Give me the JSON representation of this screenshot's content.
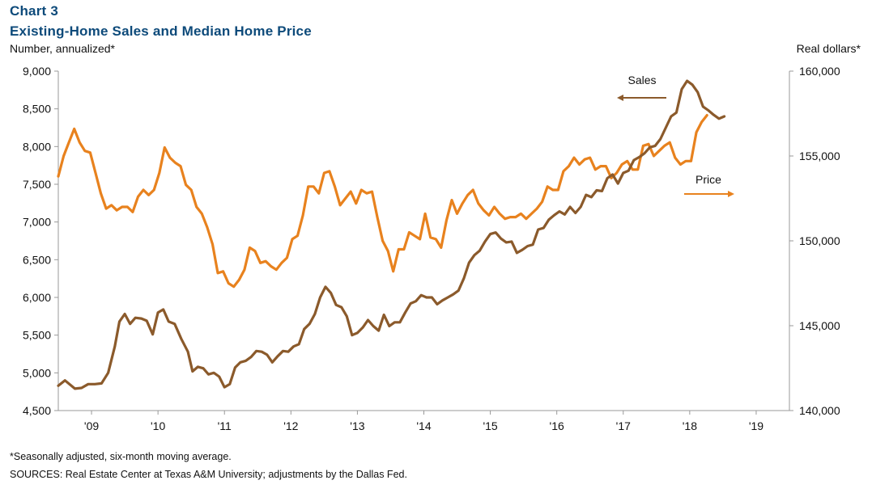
{
  "header": {
    "chart_label": "Chart 3",
    "title": "Existing-Home Sales and Median Home Price",
    "y_left_title": "Number, annualized*",
    "y_right_title": "Real dollars*"
  },
  "footer": {
    "footnote": "*Seasonally adjusted, six-month moving average.",
    "sources": "SOURCES: Real Estate Center at Texas A&M University; adjustments by the Dallas Fed."
  },
  "colors": {
    "sales": "#8B5A2B",
    "price": "#E8821E",
    "axis": "#999999"
  },
  "chart_data": {
    "type": "line",
    "title": "Existing-Home Sales and Median Home Price",
    "x_tick_labels": [
      "'09",
      "'10",
      "'11",
      "'12",
      "'13",
      "'14",
      "'15",
      "'16",
      "'17",
      "'18",
      "'19"
    ],
    "x_range": [
      2008.5,
      2019.5
    ],
    "y_left": {
      "label": "Number, annualized*",
      "range": [
        4500,
        9000
      ],
      "ticks": [
        "4,500",
        "5,000",
        "5,500",
        "6,000",
        "6,500",
        "7,000",
        "7,500",
        "8,000",
        "8,500",
        "9,000"
      ]
    },
    "y_right": {
      "label": "Real dollars*",
      "range": [
        140000,
        160000
      ],
      "ticks": [
        "140,000",
        "145,000",
        "150,000",
        "155,000",
        "160,000"
      ]
    },
    "grid": false,
    "annotations": [
      {
        "text": "Sales",
        "series": "Sales",
        "arrow": "left"
      },
      {
        "text": "Price",
        "series": "Price",
        "arrow": "right"
      }
    ],
    "series": [
      {
        "name": "Sales",
        "axis": "left",
        "points": [
          [
            2008.5,
            4830
          ],
          [
            2008.6,
            4900
          ],
          [
            2008.75,
            4790
          ],
          [
            2008.85,
            4800
          ],
          [
            2008.95,
            4850
          ],
          [
            2009.05,
            4850
          ],
          [
            2009.15,
            4860
          ],
          [
            2009.25,
            5000
          ],
          [
            2009.35,
            5350
          ],
          [
            2009.42,
            5680
          ],
          [
            2009.5,
            5780
          ],
          [
            2009.58,
            5650
          ],
          [
            2009.66,
            5730
          ],
          [
            2009.75,
            5720
          ],
          [
            2009.83,
            5690
          ],
          [
            2009.92,
            5510
          ],
          [
            2010.0,
            5800
          ],
          [
            2010.08,
            5840
          ],
          [
            2010.16,
            5680
          ],
          [
            2010.25,
            5650
          ],
          [
            2010.35,
            5450
          ],
          [
            2010.45,
            5280
          ],
          [
            2010.52,
            5020
          ],
          [
            2010.6,
            5080
          ],
          [
            2010.68,
            5060
          ],
          [
            2010.76,
            4980
          ],
          [
            2010.84,
            5000
          ],
          [
            2010.92,
            4950
          ],
          [
            2011.0,
            4810
          ],
          [
            2011.08,
            4850
          ],
          [
            2011.16,
            5070
          ],
          [
            2011.24,
            5140
          ],
          [
            2011.32,
            5160
          ],
          [
            2011.4,
            5210
          ],
          [
            2011.48,
            5290
          ],
          [
            2011.56,
            5280
          ],
          [
            2011.64,
            5240
          ],
          [
            2011.72,
            5140
          ],
          [
            2011.8,
            5220
          ],
          [
            2011.88,
            5290
          ],
          [
            2011.96,
            5280
          ],
          [
            2012.04,
            5350
          ],
          [
            2012.12,
            5380
          ],
          [
            2012.2,
            5580
          ],
          [
            2012.28,
            5650
          ],
          [
            2012.36,
            5780
          ],
          [
            2012.44,
            6000
          ],
          [
            2012.52,
            6140
          ],
          [
            2012.6,
            6060
          ],
          [
            2012.68,
            5900
          ],
          [
            2012.76,
            5870
          ],
          [
            2012.84,
            5750
          ],
          [
            2012.92,
            5500
          ],
          [
            2013.0,
            5530
          ],
          [
            2013.08,
            5600
          ],
          [
            2013.16,
            5700
          ],
          [
            2013.24,
            5620
          ],
          [
            2013.32,
            5560
          ],
          [
            2013.4,
            5770
          ],
          [
            2013.48,
            5620
          ],
          [
            2013.56,
            5670
          ],
          [
            2013.64,
            5670
          ],
          [
            2013.72,
            5800
          ],
          [
            2013.8,
            5920
          ],
          [
            2013.88,
            5950
          ],
          [
            2013.96,
            6030
          ],
          [
            2014.04,
            6000
          ],
          [
            2014.12,
            6000
          ],
          [
            2014.2,
            5910
          ],
          [
            2014.28,
            5960
          ],
          [
            2014.36,
            6000
          ],
          [
            2014.44,
            6040
          ],
          [
            2014.52,
            6090
          ],
          [
            2014.6,
            6250
          ],
          [
            2014.68,
            6460
          ],
          [
            2014.76,
            6560
          ],
          [
            2014.84,
            6620
          ],
          [
            2014.92,
            6740
          ],
          [
            2015.0,
            6840
          ],
          [
            2015.08,
            6860
          ],
          [
            2015.16,
            6780
          ],
          [
            2015.24,
            6730
          ],
          [
            2015.32,
            6740
          ],
          [
            2015.4,
            6590
          ],
          [
            2015.48,
            6630
          ],
          [
            2015.56,
            6680
          ],
          [
            2015.64,
            6700
          ],
          [
            2015.72,
            6900
          ],
          [
            2015.8,
            6920
          ],
          [
            2015.88,
            7030
          ],
          [
            2015.96,
            7090
          ],
          [
            2016.04,
            7140
          ],
          [
            2016.12,
            7100
          ],
          [
            2016.2,
            7200
          ],
          [
            2016.28,
            7120
          ],
          [
            2016.36,
            7200
          ],
          [
            2016.44,
            7360
          ],
          [
            2016.52,
            7330
          ],
          [
            2016.6,
            7420
          ],
          [
            2016.68,
            7410
          ],
          [
            2016.76,
            7580
          ],
          [
            2016.84,
            7630
          ],
          [
            2016.92,
            7510
          ],
          [
            2017.0,
            7650
          ],
          [
            2017.08,
            7680
          ],
          [
            2017.16,
            7820
          ],
          [
            2017.24,
            7860
          ],
          [
            2017.32,
            7910
          ],
          [
            2017.4,
            7990
          ],
          [
            2017.48,
            8010
          ],
          [
            2017.56,
            8100
          ],
          [
            2017.64,
            8250
          ],
          [
            2017.72,
            8400
          ],
          [
            2017.8,
            8450
          ],
          [
            2017.88,
            8760
          ],
          [
            2017.96,
            8870
          ],
          [
            2018.04,
            8820
          ],
          [
            2018.12,
            8720
          ],
          [
            2018.2,
            8530
          ],
          [
            2018.28,
            8480
          ],
          [
            2018.36,
            8420
          ],
          [
            2018.44,
            8370
          ],
          [
            2018.52,
            8400
          ]
        ]
      },
      {
        "name": "Price",
        "axis": "right",
        "points": [
          [
            2008.5,
            153.8
          ],
          [
            2008.58,
            155.0
          ],
          [
            2008.66,
            155.8
          ],
          [
            2008.74,
            156.6
          ],
          [
            2008.82,
            155.8
          ],
          [
            2008.9,
            155.3
          ],
          [
            2008.98,
            155.2
          ],
          [
            2009.06,
            154.0
          ],
          [
            2009.14,
            152.8
          ],
          [
            2009.22,
            151.9
          ],
          [
            2009.3,
            152.1
          ],
          [
            2009.38,
            151.8
          ],
          [
            2009.46,
            152.0
          ],
          [
            2009.54,
            152.0
          ],
          [
            2009.62,
            151.7
          ],
          [
            2009.7,
            152.6
          ],
          [
            2009.78,
            153.0
          ],
          [
            2009.86,
            152.7
          ],
          [
            2009.94,
            153.0
          ],
          [
            2010.02,
            154.0
          ],
          [
            2010.1,
            155.5
          ],
          [
            2010.18,
            154.9
          ],
          [
            2010.26,
            154.6
          ],
          [
            2010.34,
            154.4
          ],
          [
            2010.42,
            153.3
          ],
          [
            2010.5,
            153.0
          ],
          [
            2010.58,
            152.0
          ],
          [
            2010.66,
            151.6
          ],
          [
            2010.74,
            150.8
          ],
          [
            2010.82,
            149.8
          ],
          [
            2010.9,
            148.1
          ],
          [
            2010.98,
            148.2
          ],
          [
            2011.06,
            147.5
          ],
          [
            2011.14,
            147.3
          ],
          [
            2011.22,
            147.7
          ],
          [
            2011.3,
            148.3
          ],
          [
            2011.38,
            149.6
          ],
          [
            2011.46,
            149.4
          ],
          [
            2011.54,
            148.7
          ],
          [
            2011.62,
            148.8
          ],
          [
            2011.7,
            148.5
          ],
          [
            2011.78,
            148.3
          ],
          [
            2011.86,
            148.7
          ],
          [
            2011.94,
            149.0
          ],
          [
            2012.02,
            150.1
          ],
          [
            2012.1,
            150.3
          ],
          [
            2012.18,
            151.5
          ],
          [
            2012.26,
            153.2
          ],
          [
            2012.34,
            153.2
          ],
          [
            2012.42,
            152.8
          ],
          [
            2012.5,
            154.0
          ],
          [
            2012.58,
            154.1
          ],
          [
            2012.66,
            153.2
          ],
          [
            2012.74,
            152.1
          ],
          [
            2012.82,
            152.5
          ],
          [
            2012.9,
            152.9
          ],
          [
            2012.98,
            152.2
          ],
          [
            2013.06,
            153.0
          ],
          [
            2013.14,
            152.8
          ],
          [
            2013.22,
            152.9
          ],
          [
            2013.3,
            151.4
          ],
          [
            2013.38,
            150.0
          ],
          [
            2013.46,
            149.4
          ],
          [
            2013.54,
            148.2
          ],
          [
            2013.62,
            149.5
          ],
          [
            2013.7,
            149.5
          ],
          [
            2013.78,
            150.5
          ],
          [
            2013.86,
            150.3
          ],
          [
            2013.94,
            150.1
          ],
          [
            2014.02,
            151.6
          ],
          [
            2014.1,
            150.2
          ],
          [
            2014.18,
            150.1
          ],
          [
            2014.26,
            149.6
          ],
          [
            2014.34,
            151.2
          ],
          [
            2014.42,
            152.4
          ],
          [
            2014.5,
            151.6
          ],
          [
            2014.58,
            152.2
          ],
          [
            2014.66,
            152.7
          ],
          [
            2014.74,
            153.0
          ],
          [
            2014.82,
            152.2
          ],
          [
            2014.9,
            151.8
          ],
          [
            2014.98,
            151.5
          ],
          [
            2015.06,
            152.0
          ],
          [
            2015.14,
            151.6
          ],
          [
            2015.22,
            151.3
          ],
          [
            2015.3,
            151.4
          ],
          [
            2015.38,
            151.4
          ],
          [
            2015.46,
            151.6
          ],
          [
            2015.54,
            151.3
          ],
          [
            2015.62,
            151.6
          ],
          [
            2015.7,
            151.9
          ],
          [
            2015.78,
            152.3
          ],
          [
            2015.86,
            153.2
          ],
          [
            2015.94,
            153.0
          ],
          [
            2016.02,
            153.0
          ],
          [
            2016.1,
            154.1
          ],
          [
            2016.18,
            154.4
          ],
          [
            2016.26,
            154.9
          ],
          [
            2016.34,
            154.5
          ],
          [
            2016.42,
            154.8
          ],
          [
            2016.5,
            154.9
          ],
          [
            2016.58,
            154.2
          ],
          [
            2016.66,
            154.4
          ],
          [
            2016.74,
            154.4
          ],
          [
            2016.82,
            153.7
          ],
          [
            2016.9,
            154.0
          ],
          [
            2016.98,
            154.5
          ],
          [
            2017.06,
            154.7
          ],
          [
            2017.14,
            154.2
          ],
          [
            2017.22,
            154.2
          ],
          [
            2017.3,
            155.6
          ],
          [
            2017.38,
            155.7
          ],
          [
            2017.46,
            155.0
          ],
          [
            2017.54,
            155.3
          ],
          [
            2017.62,
            155.6
          ],
          [
            2017.7,
            155.8
          ],
          [
            2017.78,
            154.9
          ],
          [
            2017.86,
            154.5
          ],
          [
            2017.94,
            154.7
          ],
          [
            2018.02,
            154.7
          ],
          [
            2018.1,
            156.4
          ],
          [
            2018.18,
            157.0
          ],
          [
            2018.26,
            157.4
          ]
        ]
      }
    ]
  }
}
